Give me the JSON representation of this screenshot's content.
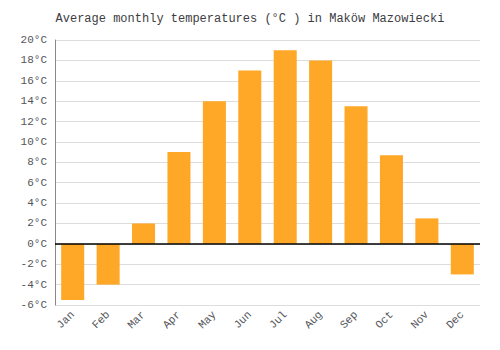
{
  "chart_data": {
    "type": "bar",
    "title": "Average monthly temperatures (°C ) in Maköw Mazowiecki",
    "categories": [
      "Jan",
      "Feb",
      "Mar",
      "Apr",
      "May",
      "Jun",
      "Jul",
      "Aug",
      "Sep",
      "Oct",
      "Nov",
      "Dec"
    ],
    "values": [
      -5.5,
      -4.0,
      2.0,
      9.0,
      14.0,
      17.0,
      19.0,
      18.0,
      13.5,
      8.7,
      2.5,
      -3.0
    ],
    "color": "#FFA726",
    "ylim": [
      -6,
      20
    ],
    "yticks": [
      {
        "value": -6,
        "label": "-6°C"
      },
      {
        "value": -4,
        "label": "-4°C"
      },
      {
        "value": -2,
        "label": "-2°C"
      },
      {
        "value": 0,
        "label": "0°C"
      },
      {
        "value": 2,
        "label": "2°C"
      },
      {
        "value": 4,
        "label": "4°C"
      },
      {
        "value": 6,
        "label": "6°C"
      },
      {
        "value": 8,
        "label": "8°C"
      },
      {
        "value": 10,
        "label": "10°C"
      },
      {
        "value": 12,
        "label": "12°C"
      },
      {
        "value": 14,
        "label": "14°C"
      },
      {
        "value": 16,
        "label": "16°C"
      },
      {
        "value": 18,
        "label": "18°C"
      },
      {
        "value": 20,
        "label": "20°C"
      }
    ],
    "grid": true
  }
}
